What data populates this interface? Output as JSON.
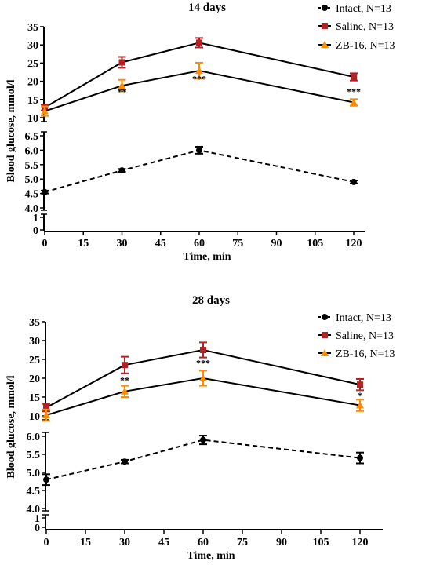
{
  "colors": {
    "intact": "#000000",
    "saline": "#b22222",
    "zb16": "#ff8c00",
    "axis": "#000000"
  },
  "chart_data": [
    {
      "type": "line",
      "title": "14 days",
      "xlabel": "Time, min",
      "ylabel": "Blood glucose, mmol/l",
      "x_ticks": [
        0,
        15,
        30,
        45,
        60,
        75,
        90,
        105,
        120
      ],
      "x_range": [
        0,
        125
      ],
      "upper_axis": {
        "range": [
          10,
          35
        ],
        "ticks": [
          10,
          15,
          20,
          25,
          30,
          35
        ]
      },
      "lower_axis": {
        "range": [
          4.0,
          6.5
        ],
        "ticks": [
          "4.0",
          "4.5",
          "5.0",
          "5.5",
          "6.0",
          "6.5"
        ]
      },
      "base_axis": {
        "range": [
          0,
          1
        ],
        "ticks": [
          "0",
          "1"
        ]
      },
      "legend": [
        "Intact, N=13",
        "Saline, N=13",
        "ZB-16, N=13"
      ],
      "legend_position": "top-right",
      "series": [
        {
          "name": "Intact, N=13",
          "panel": "lower",
          "marker": "circle",
          "style": "dashed",
          "x": [
            0,
            30,
            60,
            120
          ],
          "y": [
            4.55,
            5.3,
            6.0,
            4.9
          ],
          "err": [
            0.05,
            0.05,
            0.12,
            0.05
          ]
        },
        {
          "name": "Saline, N=13",
          "panel": "upper",
          "marker": "square",
          "style": "solid",
          "x": [
            0,
            30,
            60,
            120
          ],
          "y": [
            12.8,
            25.2,
            30.6,
            21.2
          ],
          "err": [
            0.8,
            1.5,
            1.3,
            1.0
          ]
        },
        {
          "name": "ZB-16, N=13",
          "panel": "upper",
          "marker": "triangle",
          "style": "solid",
          "x": [
            0,
            30,
            60,
            120
          ],
          "y": [
            11.8,
            18.8,
            22.9,
            14.2
          ],
          "err": [
            1.3,
            1.6,
            2.2,
            0.9
          ]
        }
      ],
      "annotations": [
        {
          "x": 30,
          "y": 16.4,
          "text": "**"
        },
        {
          "x": 60,
          "y": 19.8,
          "text": "***"
        },
        {
          "x": 120,
          "y": 16.4,
          "text": "***"
        }
      ]
    },
    {
      "type": "line",
      "title": "28 days",
      "xlabel": "Time, min",
      "ylabel": "Blood glucose, mmol/l",
      "x_ticks": [
        0,
        15,
        30,
        45,
        60,
        75,
        90,
        105,
        120
      ],
      "x_range": [
        0,
        125
      ],
      "upper_axis": {
        "range": [
          10,
          35
        ],
        "ticks": [
          10,
          15,
          20,
          25,
          30,
          35
        ]
      },
      "lower_axis": {
        "range": [
          4.0,
          6.0
        ],
        "ticks": [
          "4.0",
          "4.5",
          "5.0",
          "5.5",
          "6.0"
        ]
      },
      "base_axis": {
        "range": [
          0,
          1
        ],
        "ticks": [
          "0",
          "1"
        ]
      },
      "legend": [
        "Intact, N=13",
        "Saline, N=13",
        "ZB-16, N=13"
      ],
      "legend_position": "top-right",
      "series": [
        {
          "name": "Intact, N=13",
          "panel": "lower",
          "marker": "circle",
          "style": "dashed",
          "x": [
            0,
            30,
            60,
            120
          ],
          "y": [
            4.8,
            5.3,
            5.9,
            5.4
          ],
          "err": [
            0.15,
            0.05,
            0.12,
            0.15
          ]
        },
        {
          "name": "Saline, N=13",
          "panel": "upper",
          "marker": "square",
          "style": "solid",
          "x": [
            0,
            30,
            60,
            120
          ],
          "y": [
            12.2,
            23.5,
            27.5,
            18.3
          ],
          "err": [
            1.0,
            2.2,
            2.0,
            1.5
          ]
        },
        {
          "name": "ZB-16, N=13",
          "panel": "upper",
          "marker": "triangle",
          "style": "solid",
          "x": [
            0,
            30,
            60,
            120
          ],
          "y": [
            10.2,
            16.5,
            20.0,
            12.8
          ],
          "err": [
            1.5,
            1.5,
            2.0,
            1.5
          ]
        }
      ],
      "annotations": [
        {
          "x": 30,
          "y": 18.6,
          "text": "**"
        },
        {
          "x": 60,
          "y": 23.2,
          "text": "***"
        },
        {
          "x": 120,
          "y": 14.6,
          "text": "*"
        }
      ]
    }
  ]
}
